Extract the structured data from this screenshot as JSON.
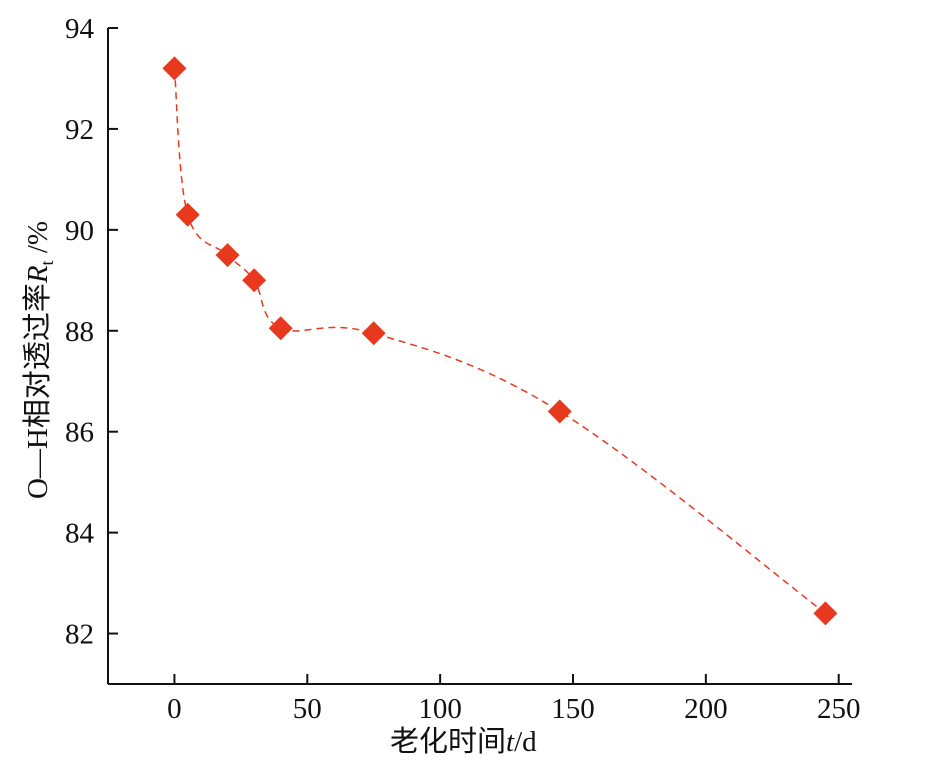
{
  "chart_data": {
    "type": "scatter",
    "xlabel": {
      "prefix": "老化时间",
      "var": "t",
      "suffix": "/d"
    },
    "ylabel": {
      "prefix": "O—H相对透过率",
      "var": "R",
      "sub": "t",
      "suffix": " /%"
    },
    "xlim": [
      -25,
      255
    ],
    "ylim": [
      81,
      94
    ],
    "xticks": [
      0,
      50,
      100,
      150,
      200,
      250
    ],
    "yticks": [
      82,
      84,
      86,
      88,
      90,
      92,
      94
    ],
    "marker": "diamond",
    "line_style": "dashed-smooth",
    "color": "#e8391e",
    "series": [
      {
        "x": [
          0,
          5,
          20,
          30,
          40,
          75,
          145,
          245
        ],
        "y": [
          93.2,
          90.3,
          89.5,
          89.0,
          88.05,
          87.95,
          86.4,
          82.4
        ]
      }
    ],
    "grid": false
  }
}
